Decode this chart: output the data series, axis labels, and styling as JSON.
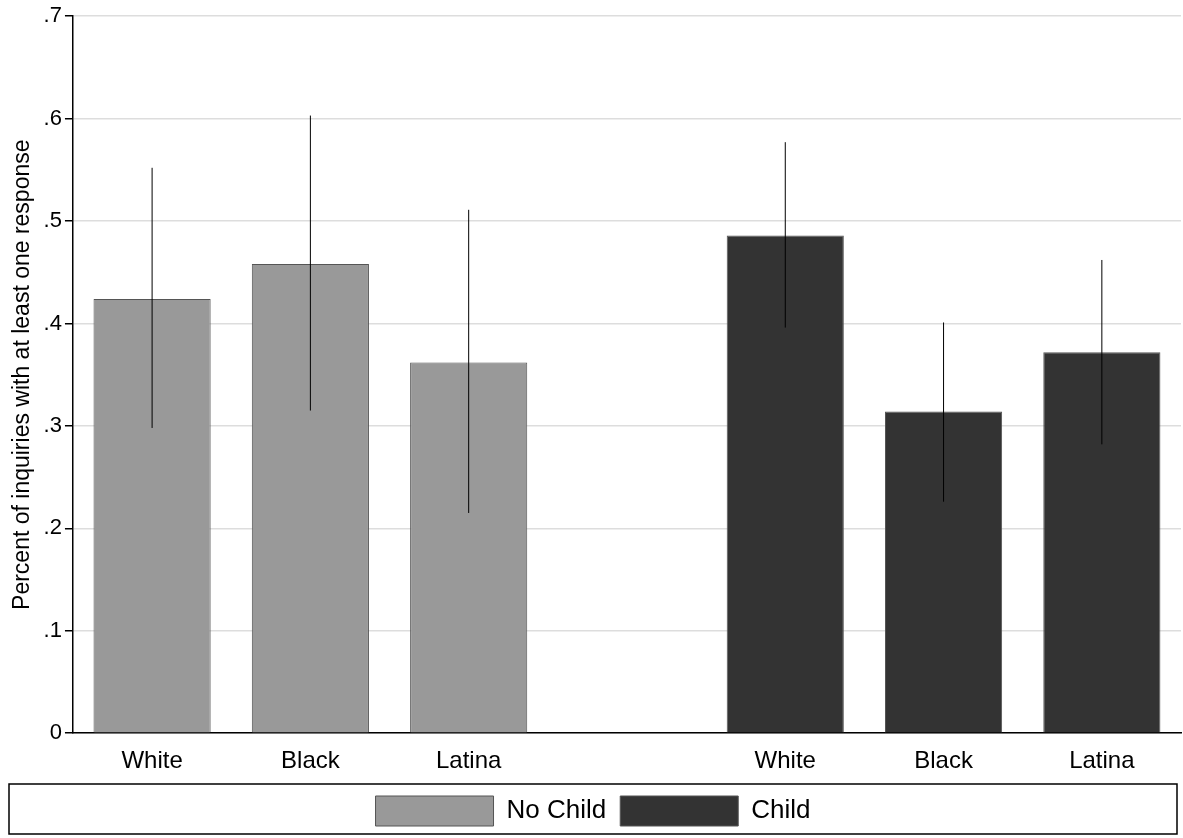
{
  "chart_data": {
    "type": "bar",
    "ylabel": "Percent of inquiries with at least one response",
    "categories": [
      "White",
      "Black",
      "Latina",
      null,
      "White",
      "Black",
      "Latina"
    ],
    "series": [
      {
        "name": "No Child",
        "color": "#999999",
        "values": [
          0.424,
          0.458,
          0.362,
          null,
          null,
          null,
          null
        ],
        "errors": [
          [
            0.298,
            0.552
          ],
          [
            0.315,
            0.603
          ],
          [
            0.215,
            0.511
          ],
          null,
          null,
          null,
          null
        ]
      },
      {
        "name": "Child",
        "color": "#333333",
        "values": [
          null,
          null,
          null,
          null,
          0.486,
          0.314,
          0.372
        ],
        "errors": [
          null,
          null,
          null,
          null,
          [
            0.396,
            0.577
          ],
          [
            0.226,
            0.401
          ],
          [
            0.282,
            0.462
          ]
        ]
      }
    ],
    "ylim": [
      0,
      0.7
    ],
    "yticks": [
      {
        "value": 0,
        "label": "0"
      },
      {
        "value": 0.1,
        "label": ".1"
      },
      {
        "value": 0.2,
        "label": ".2"
      },
      {
        "value": 0.3,
        "label": ".3"
      },
      {
        "value": 0.4,
        "label": ".4"
      },
      {
        "value": 0.5,
        "label": ".5"
      },
      {
        "value": 0.6,
        "label": ".6"
      },
      {
        "value": 0.7,
        "label": ".7"
      }
    ],
    "grid": "y",
    "legend": "bottom"
  }
}
